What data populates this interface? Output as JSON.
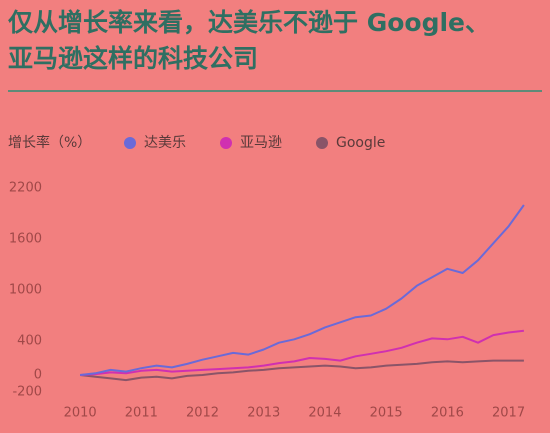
{
  "chart_data": {
    "type": "line",
    "title_lines": [
      "仅从增长率来看，达美乐不逊于 Google、",
      "亚马逊这样的科技公司"
    ],
    "y_label": "增长率（%）",
    "x": [
      2010,
      2010.25,
      2010.5,
      2010.75,
      2011,
      2011.25,
      2011.5,
      2011.75,
      2012,
      2012.25,
      2012.5,
      2012.75,
      2013,
      2013.25,
      2013.5,
      2013.75,
      2014,
      2014.25,
      2014.5,
      2014.75,
      2015,
      2015.25,
      2015.5,
      2015.75,
      2016,
      2016.25,
      2016.5,
      2016.75,
      2017,
      2017.25
    ],
    "series": [
      {
        "name": "达美乐",
        "color": "#6a6ad8",
        "values": [
          0,
          20,
          60,
          40,
          80,
          110,
          90,
          130,
          180,
          220,
          260,
          240,
          300,
          380,
          420,
          480,
          560,
          620,
          680,
          700,
          780,
          900,
          1050,
          1150,
          1250,
          1200,
          1350,
          1550,
          1750,
          2000
        ]
      },
      {
        "name": "亚马逊",
        "color": "#d030b0",
        "values": [
          0,
          10,
          30,
          20,
          50,
          60,
          40,
          50,
          60,
          70,
          80,
          90,
          110,
          140,
          160,
          200,
          190,
          170,
          220,
          250,
          280,
          320,
          380,
          430,
          420,
          450,
          380,
          470,
          500,
          520
        ]
      },
      {
        "name": "Google",
        "color": "#8a5468",
        "values": [
          0,
          -20,
          -40,
          -60,
          -30,
          -20,
          -40,
          -10,
          0,
          20,
          30,
          50,
          60,
          80,
          90,
          100,
          110,
          100,
          80,
          90,
          110,
          120,
          130,
          150,
          160,
          150,
          160,
          170,
          170,
          170
        ]
      }
    ],
    "xlim": [
      2009.9,
      2017.35
    ],
    "xticks": [
      2010,
      2011,
      2012,
      2013,
      2014,
      2015,
      2016,
      2017
    ],
    "ylim": [
      -200,
      2200
    ],
    "yticks": [
      -200,
      0,
      400,
      1000,
      1600,
      2200
    ]
  }
}
